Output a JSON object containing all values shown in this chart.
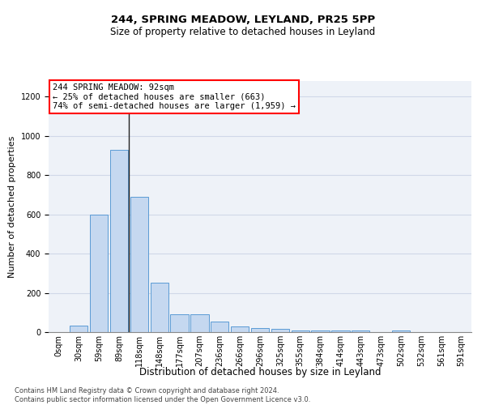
{
  "title1": "244, SPRING MEADOW, LEYLAND, PR25 5PP",
  "title2": "Size of property relative to detached houses in Leyland",
  "xlabel": "Distribution of detached houses by size in Leyland",
  "ylabel": "Number of detached properties",
  "bar_labels": [
    "0sqm",
    "30sqm",
    "59sqm",
    "89sqm",
    "118sqm",
    "148sqm",
    "177sqm",
    "207sqm",
    "236sqm",
    "266sqm",
    "296sqm",
    "325sqm",
    "355sqm",
    "384sqm",
    "414sqm",
    "443sqm",
    "473sqm",
    "502sqm",
    "532sqm",
    "561sqm",
    "591sqm"
  ],
  "bar_values": [
    0,
    35,
    600,
    930,
    690,
    250,
    90,
    90,
    55,
    30,
    20,
    15,
    10,
    10,
    10,
    10,
    0,
    10,
    0,
    0,
    0
  ],
  "bar_color": "#c5d8f0",
  "bar_edge_color": "#5b9bd5",
  "grid_color": "#d0d8e8",
  "ylim": [
    0,
    1280
  ],
  "yticks": [
    0,
    200,
    400,
    600,
    800,
    1000,
    1200
  ],
  "property_size_label": "244 SPRING MEADOW: 92sqm",
  "annotation_line1": "← 25% of detached houses are smaller (663)",
  "annotation_line2": "74% of semi-detached houses are larger (1,959) →",
  "vline_x_index": 3.5,
  "footer1": "Contains HM Land Registry data © Crown copyright and database right 2024.",
  "footer2": "Contains public sector information licensed under the Open Government Licence v3.0.",
  "background_color": "#eef2f8",
  "title1_fontsize": 9.5,
  "title2_fontsize": 8.5,
  "xlabel_fontsize": 8.5,
  "ylabel_fontsize": 8.0,
  "tick_fontsize": 7.0,
  "annotation_fontsize": 7.5,
  "footer_fontsize": 6.0
}
